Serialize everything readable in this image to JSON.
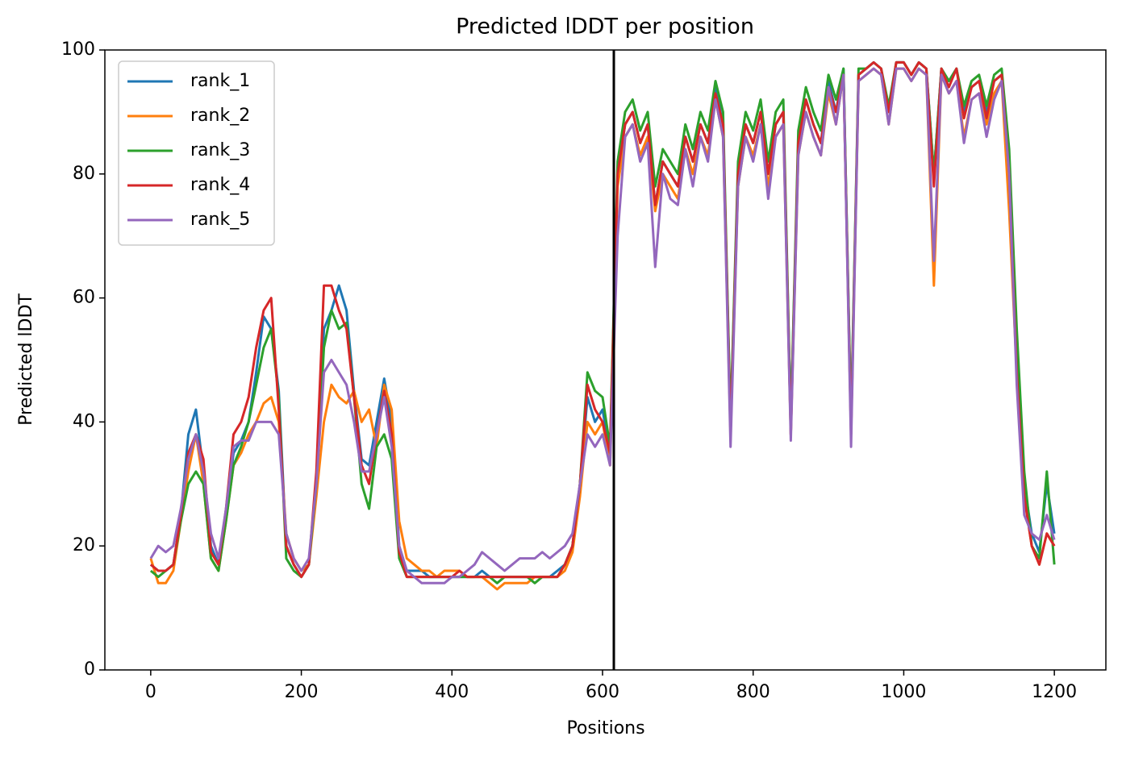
{
  "chart_data": {
    "type": "line",
    "title": "Predicted lDDT per position",
    "x_label": "Positions",
    "y_label": "Predicted lDDT",
    "xlim": [
      -60.9,
      1268.4
    ],
    "ylim": [
      0,
      100
    ],
    "xticks": [
      0,
      200,
      400,
      600,
      800,
      1000,
      1200
    ],
    "yticks": [
      0,
      20,
      40,
      60,
      80,
      100
    ],
    "vline": 615,
    "vline_color": "#000000",
    "legend": "upper left",
    "grid": false,
    "x": [
      0,
      10,
      20,
      30,
      40,
      50,
      60,
      70,
      80,
      90,
      100,
      110,
      120,
      130,
      140,
      150,
      160,
      170,
      180,
      190,
      200,
      210,
      220,
      230,
      240,
      250,
      260,
      270,
      280,
      290,
      300,
      310,
      320,
      330,
      340,
      350,
      360,
      370,
      380,
      390,
      400,
      410,
      420,
      430,
      440,
      450,
      460,
      470,
      480,
      490,
      500,
      510,
      520,
      530,
      540,
      550,
      560,
      570,
      580,
      590,
      600,
      610,
      620,
      630,
      640,
      650,
      660,
      670,
      680,
      690,
      700,
      710,
      720,
      730,
      740,
      750,
      760,
      770,
      780,
      790,
      800,
      810,
      820,
      830,
      840,
      850,
      860,
      870,
      880,
      890,
      900,
      910,
      920,
      930,
      940,
      950,
      960,
      970,
      980,
      990,
      1000,
      1010,
      1020,
      1030,
      1040,
      1050,
      1060,
      1070,
      1080,
      1090,
      1100,
      1110,
      1120,
      1130,
      1140,
      1150,
      1160,
      1170,
      1180,
      1190,
      1200
    ],
    "series": [
      {
        "name": "rank_1",
        "color": "#1f77b4",
        "values": [
          17,
          16,
          16,
          17,
          25,
          38,
          42,
          32,
          20,
          17,
          25,
          35,
          37,
          40,
          48,
          57,
          55,
          45,
          20,
          17,
          15,
          17,
          30,
          55,
          58,
          62,
          58,
          45,
          34,
          33,
          40,
          47,
          40,
          20,
          16,
          16,
          16,
          15,
          15,
          15,
          15,
          15,
          15,
          15,
          16,
          15,
          15,
          15,
          15,
          15,
          15,
          15,
          15,
          15,
          16,
          17,
          20,
          30,
          44,
          40,
          42,
          35,
          80,
          88,
          90,
          85,
          88,
          75,
          82,
          80,
          78,
          86,
          82,
          88,
          85,
          94,
          88,
          40,
          80,
          88,
          85,
          90,
          80,
          88,
          90,
          40,
          85,
          92,
          88,
          85,
          95,
          90,
          97,
          40,
          96,
          97,
          98,
          97,
          90,
          98,
          98,
          96,
          98,
          97,
          80,
          97,
          95,
          97,
          90,
          94,
          95,
          90,
          95,
          96,
          80,
          50,
          30,
          22,
          19,
          30,
          22
        ]
      },
      {
        "name": "rank_2",
        "color": "#ff7f0e",
        "values": [
          18,
          14,
          14,
          16,
          24,
          32,
          38,
          30,
          18,
          16,
          24,
          33,
          35,
          38,
          40,
          43,
          44,
          40,
          22,
          18,
          16,
          17,
          28,
          40,
          46,
          44,
          43,
          45,
          40,
          42,
          36,
          46,
          42,
          24,
          18,
          17,
          16,
          16,
          15,
          16,
          16,
          16,
          15,
          15,
          15,
          14,
          13,
          14,
          14,
          14,
          14,
          15,
          15,
          15,
          15,
          16,
          19,
          28,
          40,
          38,
          40,
          33,
          78,
          86,
          88,
          83,
          86,
          74,
          80,
          78,
          76,
          84,
          80,
          86,
          83,
          92,
          86,
          38,
          78,
          86,
          83,
          88,
          78,
          86,
          88,
          38,
          83,
          90,
          86,
          83,
          93,
          88,
          96,
          38,
          95,
          96,
          97,
          96,
          88,
          97,
          97,
          95,
          97,
          96,
          62,
          96,
          93,
          95,
          86,
          92,
          93,
          88,
          93,
          95,
          74,
          48,
          28,
          20,
          17,
          22,
          20
        ]
      },
      {
        "name": "rank_3",
        "color": "#2ca02c",
        "values": [
          16,
          15,
          16,
          17,
          24,
          30,
          32,
          30,
          18,
          16,
          24,
          33,
          36,
          40,
          46,
          52,
          55,
          44,
          18,
          16,
          15,
          17,
          30,
          52,
          58,
          55,
          56,
          44,
          30,
          26,
          36,
          38,
          34,
          18,
          15,
          15,
          15,
          15,
          15,
          15,
          15,
          15,
          15,
          15,
          15,
          15,
          14,
          15,
          15,
          15,
          15,
          14,
          15,
          15,
          15,
          17,
          20,
          30,
          48,
          45,
          44,
          36,
          82,
          90,
          92,
          87,
          90,
          78,
          84,
          82,
          80,
          88,
          84,
          90,
          87,
          95,
          90,
          40,
          82,
          90,
          87,
          92,
          82,
          90,
          92,
          40,
          87,
          94,
          90,
          87,
          96,
          92,
          97,
          40,
          97,
          97,
          98,
          97,
          91,
          98,
          98,
          96,
          98,
          97,
          80,
          97,
          95,
          97,
          91,
          95,
          96,
          91,
          96,
          97,
          84,
          55,
          32,
          20,
          18,
          32,
          17
        ]
      },
      {
        "name": "rank_4",
        "color": "#d62728",
        "values": [
          17,
          16,
          16,
          17,
          25,
          35,
          38,
          34,
          19,
          17,
          26,
          38,
          40,
          44,
          52,
          58,
          60,
          42,
          20,
          17,
          15,
          17,
          32,
          62,
          62,
          58,
          55,
          44,
          33,
          30,
          38,
          45,
          38,
          19,
          15,
          15,
          15,
          15,
          15,
          15,
          15,
          16,
          15,
          15,
          15,
          15,
          15,
          15,
          15,
          15,
          15,
          15,
          15,
          15,
          15,
          17,
          20,
          30,
          46,
          42,
          40,
          35,
          80,
          88,
          90,
          85,
          88,
          75,
          82,
          80,
          78,
          86,
          82,
          88,
          85,
          93,
          88,
          38,
          80,
          88,
          85,
          90,
          80,
          88,
          90,
          38,
          85,
          92,
          88,
          85,
          94,
          90,
          96,
          38,
          96,
          97,
          98,
          97,
          90,
          98,
          98,
          96,
          98,
          97,
          78,
          97,
          94,
          97,
          89,
          94,
          95,
          89,
          95,
          96,
          80,
          48,
          28,
          20,
          17,
          22,
          20
        ]
      },
      {
        "name": "rank_5",
        "color": "#9467bd",
        "values": [
          18,
          20,
          19,
          20,
          26,
          34,
          38,
          32,
          22,
          18,
          26,
          36,
          37,
          37,
          40,
          40,
          40,
          38,
          22,
          18,
          16,
          18,
          30,
          48,
          50,
          48,
          46,
          40,
          32,
          32,
          38,
          44,
          36,
          20,
          16,
          15,
          14,
          14,
          14,
          14,
          15,
          15,
          16,
          17,
          19,
          18,
          17,
          16,
          17,
          18,
          18,
          18,
          19,
          18,
          19,
          20,
          22,
          30,
          38,
          36,
          38,
          33,
          70,
          86,
          88,
          82,
          85,
          65,
          80,
          76,
          75,
          84,
          78,
          86,
          82,
          92,
          86,
          36,
          78,
          86,
          82,
          88,
          76,
          86,
          88,
          37,
          83,
          90,
          86,
          83,
          94,
          88,
          96,
          36,
          95,
          96,
          97,
          96,
          88,
          97,
          97,
          95,
          97,
          96,
          66,
          96,
          93,
          95,
          85,
          92,
          93,
          86,
          92,
          95,
          80,
          46,
          25,
          22,
          21,
          25,
          21
        ]
      }
    ]
  }
}
